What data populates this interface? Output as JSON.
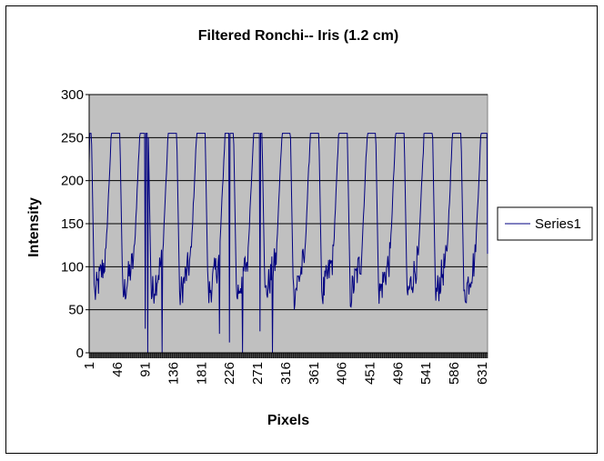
{
  "chart_data": {
    "type": "line",
    "title": "Filtered Ronchi-- Iris (1.2 cm)",
    "xlabel": "Pixels",
    "ylabel": "Intensity",
    "ylim": [
      0,
      300
    ],
    "yticks": [
      0,
      50,
      100,
      150,
      200,
      250,
      300
    ],
    "xlim": [
      1,
      640
    ],
    "xticks": [
      1,
      46,
      91,
      136,
      181,
      226,
      271,
      316,
      361,
      406,
      451,
      496,
      541,
      586,
      631
    ],
    "grid": "horizontal",
    "legend_position": "right",
    "plot_background": "#c0c0c0",
    "series": [
      {
        "name": "Series1",
        "color": "#000080",
        "period_pixels": 45.6,
        "plateau_value": 255,
        "trough_range": [
          30,
          120
        ],
        "min_value": 0,
        "start_value": 220,
        "end_value": 115
      }
    ]
  }
}
